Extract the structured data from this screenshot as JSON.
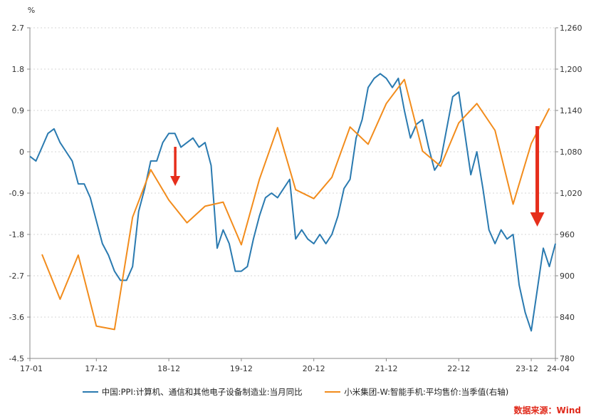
{
  "colors": {
    "series_ppi": "#2a7ab0",
    "series_price": "#f28c1c",
    "arrow": "#e62e1b",
    "source_text": "#e02a1b"
  },
  "source": "数据来源：Wind",
  "chart_data": {
    "type": "line",
    "left_axis_unit": "%",
    "left_axis": {
      "min": -4.5,
      "max": 2.7,
      "ticks": [
        "2.7",
        "1.8",
        "0.9",
        "0",
        "-0.9",
        "-1.8",
        "-2.7",
        "-3.6",
        "-4.5"
      ]
    },
    "right_axis": {
      "min": 780,
      "max": 1260,
      "ticks": [
        "1,260",
        "1,200",
        "1,140",
        "1,080",
        "1,020",
        "960",
        "900",
        "840",
        "780"
      ]
    },
    "x_ticks": [
      "17-01",
      "17-12",
      "18-12",
      "19-12",
      "20-12",
      "21-12",
      "22-12",
      "23-12",
      "24-04"
    ],
    "grid": true,
    "legend_position": "bottom",
    "series": [
      {
        "name": "中国:PPI:计算机、通信和其他电子设备制造业:当月同比",
        "axis": "left",
        "points": [
          [
            "2017-01",
            -0.1
          ],
          [
            "2017-02",
            -0.2
          ],
          [
            "2017-03",
            0.1
          ],
          [
            "2017-04",
            0.4
          ],
          [
            "2017-05",
            0.5
          ],
          [
            "2017-06",
            0.2
          ],
          [
            "2017-07",
            0.0
          ],
          [
            "2017-08",
            -0.2
          ],
          [
            "2017-09",
            -0.7
          ],
          [
            "2017-10",
            -0.7
          ],
          [
            "2017-11",
            -1.0
          ],
          [
            "2017-12",
            -1.5
          ],
          [
            "2018-01",
            -2.0
          ],
          [
            "2018-02",
            -2.25
          ],
          [
            "2018-03",
            -2.6
          ],
          [
            "2018-04",
            -2.8
          ],
          [
            "2018-05",
            -2.8
          ],
          [
            "2018-06",
            -2.5
          ],
          [
            "2018-07",
            -1.3
          ],
          [
            "2018-08",
            -0.8
          ],
          [
            "2018-09",
            -0.2
          ],
          [
            "2018-10",
            -0.2
          ],
          [
            "2018-11",
            0.2
          ],
          [
            "2018-12",
            0.4
          ],
          [
            "2019-01",
            0.4
          ],
          [
            "2019-02",
            0.1
          ],
          [
            "2019-03",
            0.2
          ],
          [
            "2019-04",
            0.3
          ],
          [
            "2019-05",
            0.1
          ],
          [
            "2019-06",
            0.2
          ],
          [
            "2019-07",
            -0.3
          ],
          [
            "2019-08",
            -2.1
          ],
          [
            "2019-09",
            -1.7
          ],
          [
            "2019-10",
            -2.0
          ],
          [
            "2019-11",
            -2.6
          ],
          [
            "2019-12",
            -2.6
          ],
          [
            "2020-01",
            -2.5
          ],
          [
            "2020-02",
            -1.9
          ],
          [
            "2020-03",
            -1.4
          ],
          [
            "2020-04",
            -1.0
          ],
          [
            "2020-05",
            -0.9
          ],
          [
            "2020-06",
            -1.0
          ],
          [
            "2020-07",
            -0.8
          ],
          [
            "2020-08",
            -0.6
          ],
          [
            "2020-09",
            -1.9
          ],
          [
            "2020-10",
            -1.7
          ],
          [
            "2020-11",
            -1.9
          ],
          [
            "2020-12",
            -2.0
          ],
          [
            "2021-01",
            -1.8
          ],
          [
            "2021-02",
            -2.0
          ],
          [
            "2021-03",
            -1.8
          ],
          [
            "2021-04",
            -1.4
          ],
          [
            "2021-05",
            -0.8
          ],
          [
            "2021-06",
            -0.6
          ],
          [
            "2021-07",
            0.3
          ],
          [
            "2021-08",
            0.7
          ],
          [
            "2021-09",
            1.4
          ],
          [
            "2021-10",
            1.6
          ],
          [
            "2021-11",
            1.7
          ],
          [
            "2021-12",
            1.6
          ],
          [
            "2022-01",
            1.4
          ],
          [
            "2022-02",
            1.6
          ],
          [
            "2022-03",
            0.9
          ],
          [
            "2022-04",
            0.3
          ],
          [
            "2022-05",
            0.6
          ],
          [
            "2022-06",
            0.7
          ],
          [
            "2022-07",
            0.1
          ],
          [
            "2022-08",
            -0.4
          ],
          [
            "2022-09",
            -0.2
          ],
          [
            "2022-10",
            0.5
          ],
          [
            "2022-11",
            1.2
          ],
          [
            "2022-12",
            1.3
          ],
          [
            "2023-01",
            0.4
          ],
          [
            "2023-02",
            -0.5
          ],
          [
            "2023-03",
            0.0
          ],
          [
            "2023-04",
            -0.8
          ],
          [
            "2023-05",
            -1.7
          ],
          [
            "2023-06",
            -2.0
          ],
          [
            "2023-07",
            -1.7
          ],
          [
            "2023-08",
            -1.9
          ],
          [
            "2023-09",
            -1.8
          ],
          [
            "2023-10",
            -2.9
          ],
          [
            "2023-11",
            -3.5
          ],
          [
            "2023-12",
            -3.9
          ],
          [
            "2024-01",
            -3.0
          ],
          [
            "2024-02",
            -2.1
          ],
          [
            "2024-03",
            -2.5
          ],
          [
            "2024-04",
            -2.0
          ]
        ]
      },
      {
        "name": "小米集团-W:智能手机:平均售价:当季值(右轴)",
        "axis": "right",
        "points": [
          [
            "2017-03",
            931
          ],
          [
            "2017-06",
            866
          ],
          [
            "2017-09",
            930
          ],
          [
            "2017-12",
            827
          ],
          [
            "2018-03",
            822
          ],
          [
            "2018-06",
            985
          ],
          [
            "2018-09",
            1054
          ],
          [
            "2018-12",
            1010
          ],
          [
            "2019-03",
            977
          ],
          [
            "2019-06",
            1001
          ],
          [
            "2019-09",
            1007
          ],
          [
            "2019-12",
            945
          ],
          [
            "2020-03",
            1040
          ],
          [
            "2020-06",
            1115
          ],
          [
            "2020-09",
            1025
          ],
          [
            "2020-12",
            1012
          ],
          [
            "2021-03",
            1043
          ],
          [
            "2021-06",
            1116
          ],
          [
            "2021-09",
            1091
          ],
          [
            "2021-12",
            1150
          ],
          [
            "2022-03",
            1185
          ],
          [
            "2022-06",
            1081
          ],
          [
            "2022-09",
            1059
          ],
          [
            "2022-12",
            1122
          ],
          [
            "2023-03",
            1150
          ],
          [
            "2023-06",
            1111
          ],
          [
            "2023-09",
            1004
          ],
          [
            "2023-12",
            1092
          ],
          [
            "2024-03",
            1143
          ]
        ]
      }
    ],
    "annotations": [
      {
        "kind": "down-arrow",
        "at": "2018-12",
        "size": "small"
      },
      {
        "kind": "down-arrow",
        "at": "2024-01",
        "size": "large"
      }
    ]
  }
}
